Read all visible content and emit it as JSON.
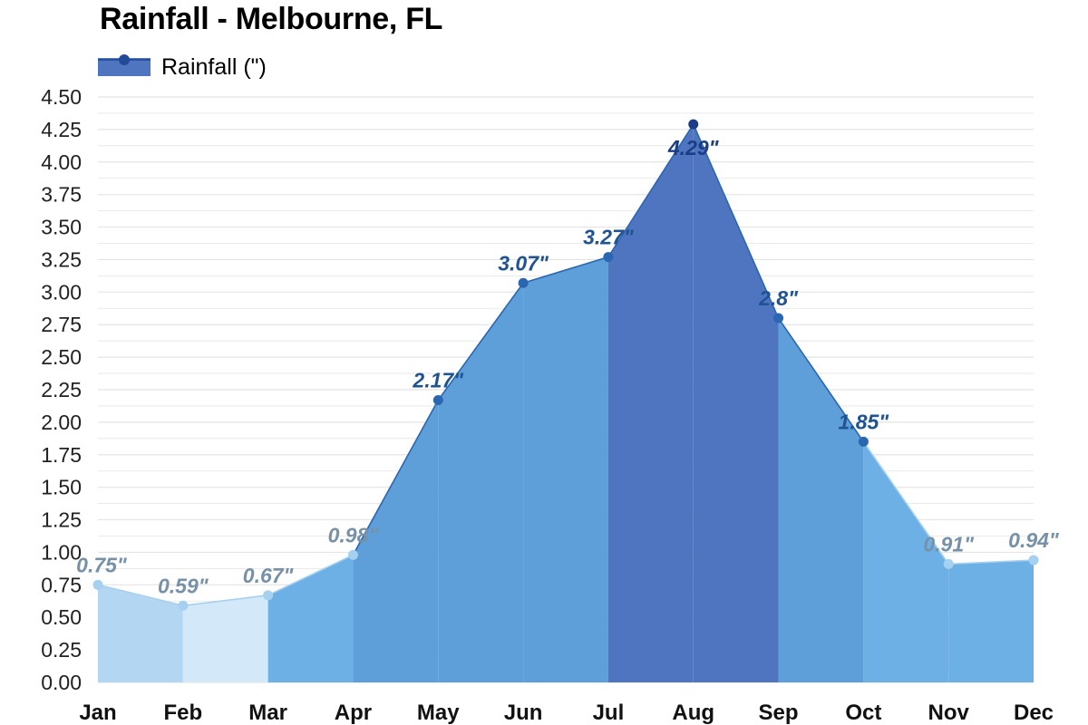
{
  "chart_data": {
    "type": "area",
    "title": "Rainfall - Melbourne, FL",
    "categories": [
      "Jan",
      "Feb",
      "Mar",
      "Apr",
      "May",
      "Jun",
      "Jul",
      "Aug",
      "Sep",
      "Oct",
      "Nov",
      "Dec"
    ],
    "series": [
      {
        "name": "Rainfall (\")",
        "values": [
          0.75,
          0.59,
          0.67,
          0.98,
          2.17,
          3.07,
          3.27,
          4.29,
          2.8,
          1.85,
          0.91,
          0.94
        ]
      }
    ],
    "data_labels": [
      "0.75\"",
      "0.59\"",
      "0.67\"",
      "0.98\"",
      "2.17\"",
      "3.07\"",
      "3.27\"",
      "4.29\"",
      "2.8\"",
      "1.85\"",
      "0.91\"",
      "0.94\""
    ],
    "yticks": [
      "0.00",
      "0.25",
      "0.50",
      "0.75",
      "1.00",
      "1.25",
      "1.50",
      "1.75",
      "2.00",
      "2.25",
      "2.50",
      "2.75",
      "3.00",
      "3.25",
      "3.50",
      "3.75",
      "4.00",
      "4.25",
      "4.50"
    ],
    "ylim": [
      0,
      4.5
    ],
    "xlabel": "",
    "ylabel": "",
    "grid": true,
    "legend_position": "top-left",
    "colors": {
      "very_dry": "#d3e8f8",
      "dry": "#b3d7f2",
      "moderate": "#6db0e6",
      "wet": "#5e9fd9",
      "wettest": "#4f74c0",
      "line_light": "#a6d0ef",
      "line_dark": "#2a67b0",
      "label_light": "#7691a8",
      "label_dark": "#1f5392",
      "label_peak": "#1b3d86",
      "grid": "#e4e4e4"
    }
  }
}
